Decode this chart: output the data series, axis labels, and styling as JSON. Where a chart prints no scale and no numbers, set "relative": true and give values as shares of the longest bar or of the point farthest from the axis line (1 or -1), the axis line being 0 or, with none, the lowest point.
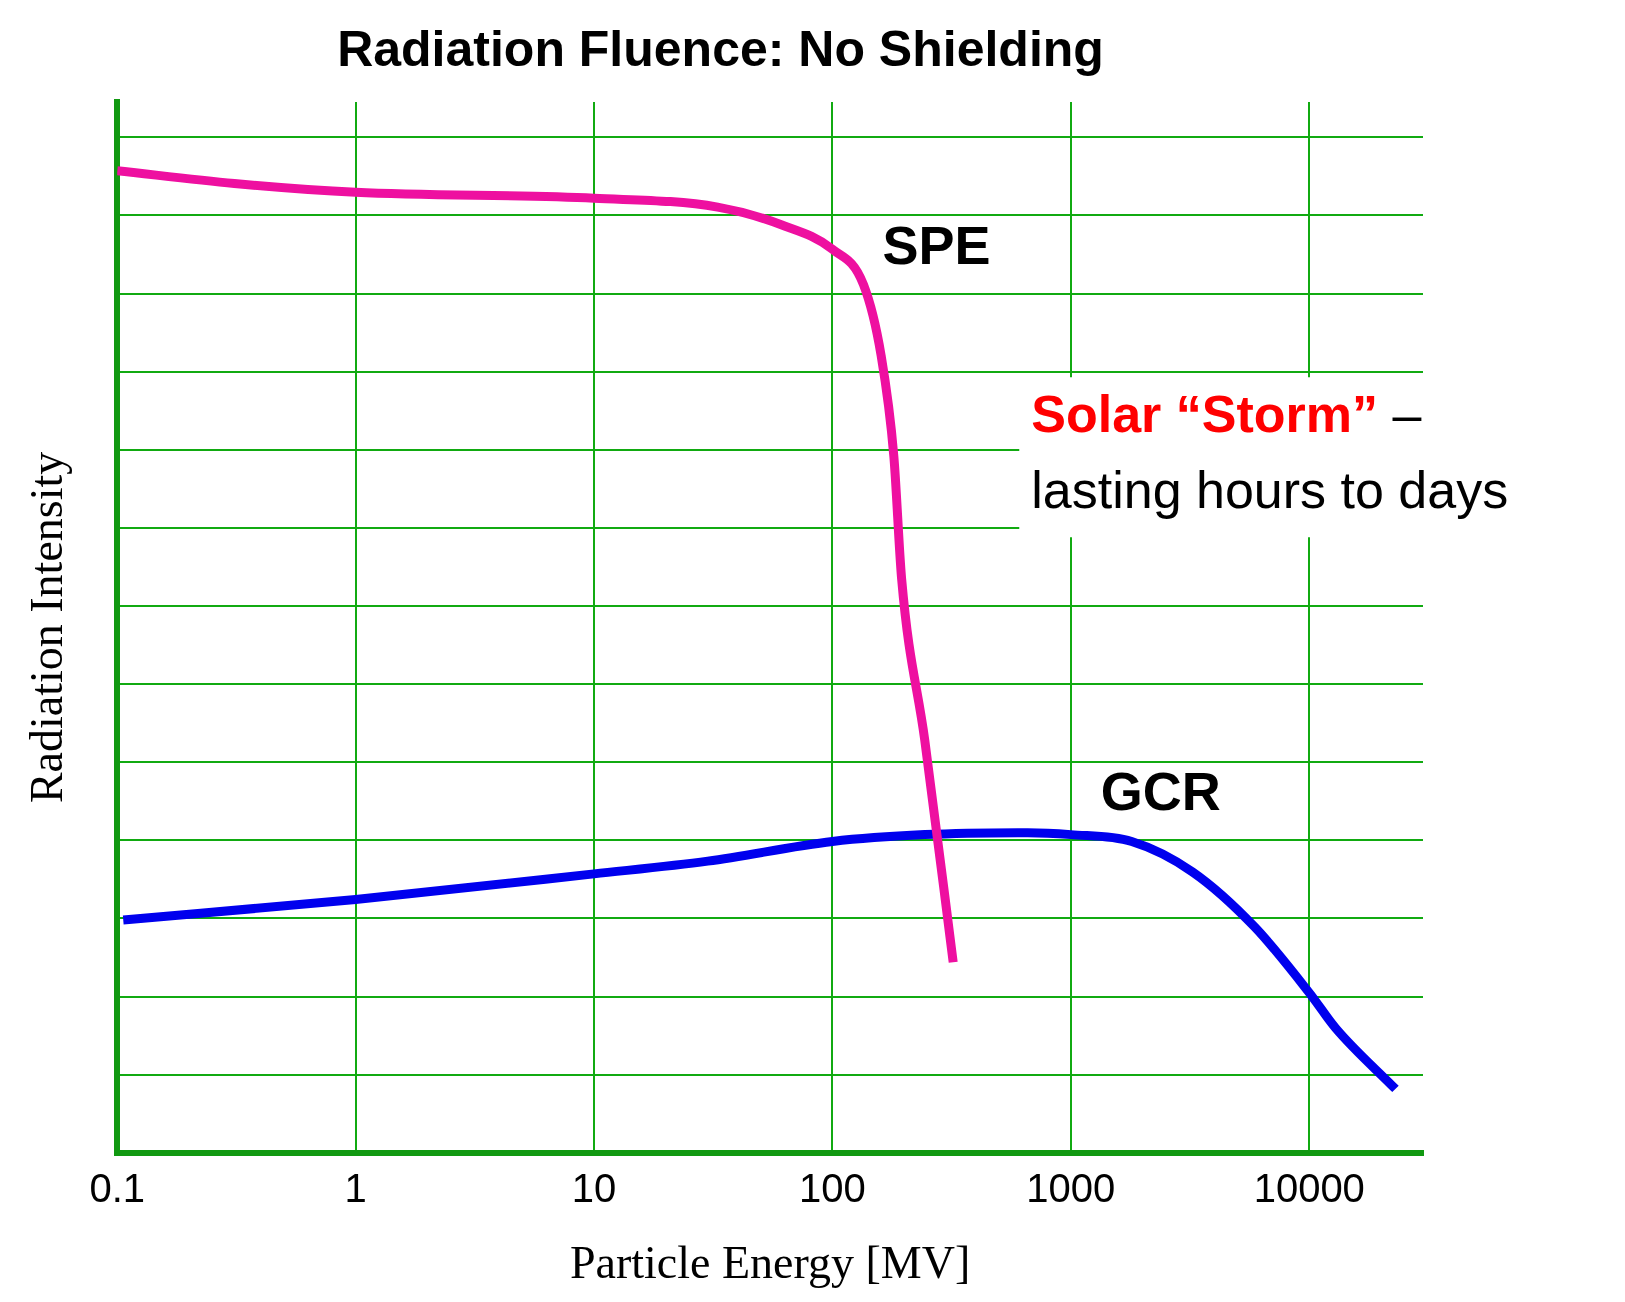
{
  "chart_data": {
    "type": "line",
    "title": "Radiation Fluence: No Shielding",
    "xlabel": "Particle Energy [MV]",
    "ylabel": "Radiation Intensity",
    "log": "x",
    "relative": true,
    "grid": true,
    "legend": false,
    "marker": "none",
    "line_style": "solid",
    "xlim": [
      0.1,
      30000
    ],
    "xticks": [
      0.1,
      1,
      10,
      100,
      1000,
      10000
    ],
    "annotations": [
      "Solar “Storm”",
      "– lasting hours to days"
    ],
    "series": [
      {
        "name": "SPE",
        "color": "#ee10a0",
        "x": [
          0.1,
          0.31,
          1,
          10,
          33,
          61,
          100,
          135,
          160,
          181,
          195,
          244,
          321
        ],
        "values": [
          1.0,
          0.987,
          0.978,
          0.972,
          0.963,
          0.945,
          0.92,
          0.884,
          0.812,
          0.709,
          0.585,
          0.42,
          0.194
        ]
      },
      {
        "name": "GCR",
        "color": "#0000ee",
        "x": [
          0.106,
          1,
          10,
          30,
          100,
          244,
          659,
          1000,
          1800,
          3240,
          5900,
          10000,
          12900,
          23000
        ],
        "values": [
          0.237,
          0.258,
          0.284,
          0.297,
          0.317,
          0.324,
          0.326,
          0.324,
          0.317,
          0.286,
          0.23,
          0.163,
          0.127,
          0.065
        ]
      }
    ]
  }
}
